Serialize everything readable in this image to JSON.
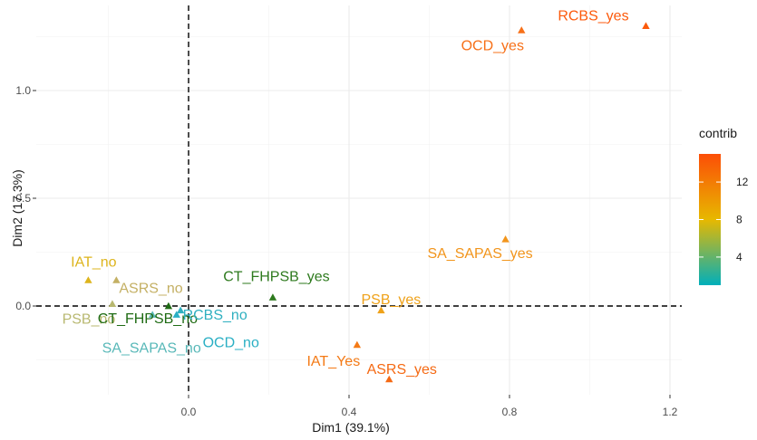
{
  "chart_data": {
    "type": "scatter",
    "title": "",
    "xlabel": "Dim1 (39.1%)",
    "ylabel": "Dim2 (17.3%)",
    "xlim": [
      -0.2,
      1.2
    ],
    "ylim": [
      -0.37,
      1.36
    ],
    "x_ticks": [
      0.0,
      0.4,
      0.8,
      1.2
    ],
    "x_tick_labels": [
      "0.0",
      "0.4",
      "0.8",
      "1.2"
    ],
    "y_ticks": [
      0.0,
      0.5,
      1.0
    ],
    "y_tick_labels": [
      "0.0",
      "0.5",
      "1.0"
    ],
    "grid": true,
    "reference_lines": {
      "x": 0,
      "y": 0,
      "style": "dashed"
    },
    "legend": {
      "title": "contrib",
      "placement": "right",
      "ticks": [
        4,
        8,
        12
      ],
      "tick_labels": [
        "4",
        "8",
        "12"
      ],
      "range": [
        1,
        15
      ],
      "colors": [
        "#00AFBB",
        "#E7B800",
        "#FC4E07"
      ]
    },
    "points": [
      {
        "label": "RCBS_yes",
        "x": 1.14,
        "y": 1.3,
        "color": "#FC5A0C"
      },
      {
        "label": "OCD_yes",
        "x": 0.83,
        "y": 1.28,
        "color": "#F77018"
      },
      {
        "label": "SA_SAPAS_yes",
        "x": 0.79,
        "y": 0.31,
        "color": "#F2951C"
      },
      {
        "label": "CT_FHPSB_yes",
        "x": 0.21,
        "y": 0.04,
        "color": "#2E7A1E"
      },
      {
        "label": "PSB_yes",
        "x": 0.48,
        "y": -0.02,
        "color": "#EFA21A"
      },
      {
        "label": "IAT_Yes",
        "x": 0.42,
        "y": -0.18,
        "color": "#F47A16"
      },
      {
        "label": "ASRS_yes",
        "x": 0.5,
        "y": -0.34,
        "color": "#F56A14"
      },
      {
        "label": "IAT_no",
        "x": -0.25,
        "y": 0.12,
        "color": "#DDB41C"
      },
      {
        "label": "ASRS_no",
        "x": -0.18,
        "y": 0.12,
        "color": "#C4B064"
      },
      {
        "label": "PSB_no",
        "x": -0.19,
        "y": 0.01,
        "color": "#B8B870"
      },
      {
        "label": "CT_FHPSB_no",
        "x": -0.05,
        "y": 0.0,
        "color": "#1F6B14"
      },
      {
        "label": "RCBS_no",
        "x": -0.02,
        "y": -0.02,
        "color": "#2FB0C0"
      },
      {
        "label": "SA_SAPAS_no",
        "x": -0.09,
        "y": -0.04,
        "color": "#58B8B8"
      },
      {
        "label": "OCD_no",
        "x": -0.03,
        "y": -0.04,
        "color": "#2AAFC4"
      }
    ]
  }
}
